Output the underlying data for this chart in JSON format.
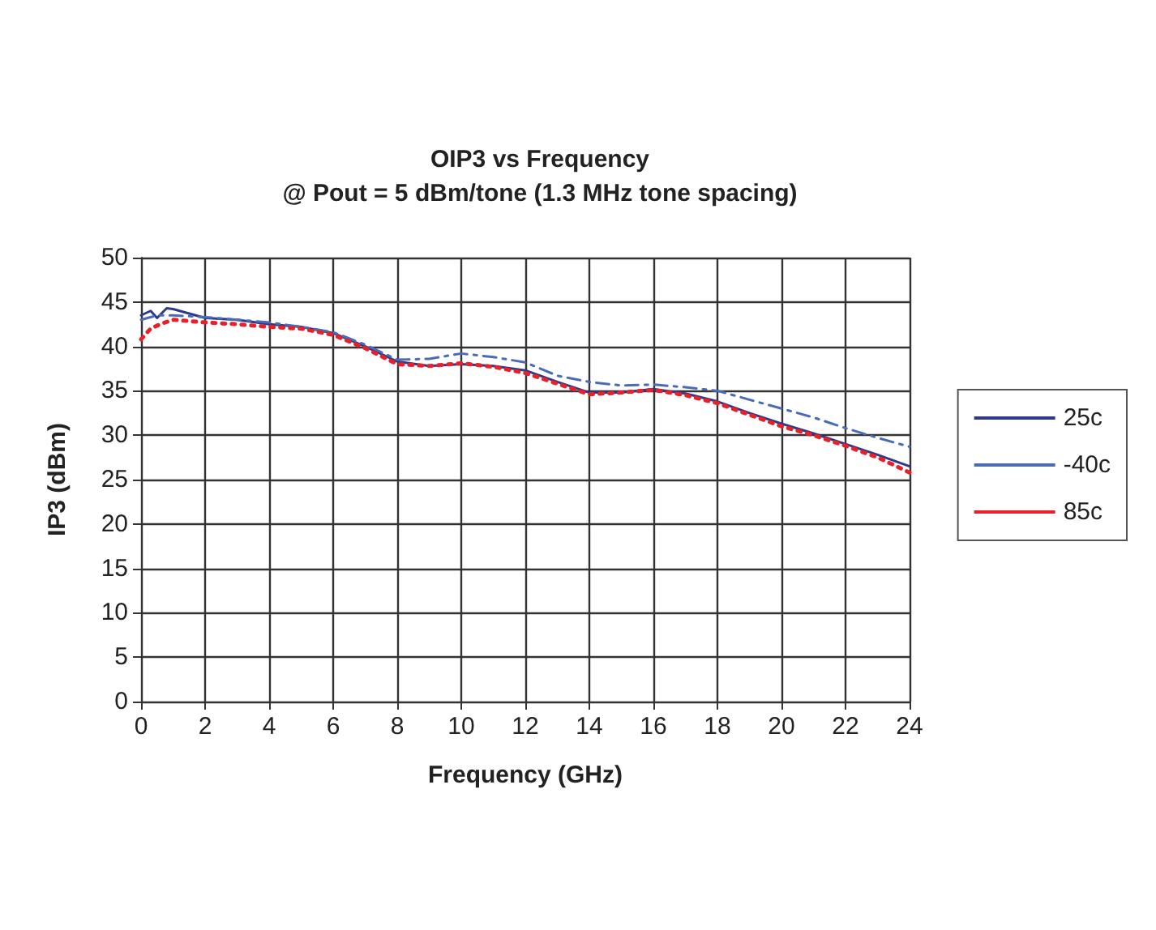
{
  "chart_data": {
    "type": "line",
    "title": "OIP3 vs Frequency",
    "subtitle": "@ Pout = 5 dBm/tone (1.3 MHz tone spacing)",
    "xlabel": "Frequency (GHz)",
    "ylabel": "IP3 (dBm)",
    "xlim": [
      0,
      24
    ],
    "xticks": [
      0,
      2,
      4,
      6,
      8,
      10,
      12,
      14,
      16,
      18,
      20,
      22,
      24
    ],
    "ylim": [
      0,
      50
    ],
    "yticks": [
      0,
      5,
      10,
      15,
      20,
      25,
      30,
      35,
      40,
      45,
      50
    ],
    "grid": true,
    "legend": "right",
    "marker": "none",
    "series": [
      {
        "name": "25c",
        "color": "#2e3a87",
        "line_style": "solid",
        "x": [
          0,
          0.3,
          0.5,
          0.8,
          1,
          1.5,
          2,
          3,
          4,
          5,
          6,
          7,
          8,
          9,
          10,
          11,
          12,
          13,
          14,
          15,
          16,
          17,
          18,
          19,
          20,
          21,
          22,
          23,
          24
        ],
        "values": [
          43.5,
          44,
          43.2,
          44.3,
          44.2,
          43.7,
          43.2,
          43,
          42.5,
          42.2,
          41.5,
          40,
          38.3,
          37.8,
          38,
          37.8,
          37.3,
          36,
          34.8,
          34.8,
          35.2,
          34.7,
          33.8,
          32.5,
          31.3,
          30.2,
          29,
          27.8,
          26.5
        ]
      },
      {
        "name": "-40c",
        "color": "#4a6bb5",
        "line_style": "dashed",
        "x": [
          0,
          0.5,
          1,
          2,
          3,
          4,
          5,
          6,
          7,
          8,
          9,
          10,
          11,
          12,
          13,
          14,
          15,
          16,
          17,
          18,
          19,
          20,
          21,
          22,
          23,
          24
        ],
        "values": [
          43,
          43.5,
          43.5,
          43.3,
          43,
          42.7,
          42.2,
          41.6,
          40.2,
          38.5,
          38.6,
          39.2,
          38.8,
          38.2,
          36.7,
          36,
          35.6,
          35.7,
          35.4,
          35,
          34,
          33,
          32,
          30.8,
          29.7,
          28.7
        ]
      },
      {
        "name": "85c",
        "color": "#e8202a",
        "line_style": "dotted",
        "x": [
          0,
          0.3,
          0.6,
          1,
          2,
          3,
          4,
          5,
          6,
          7,
          8,
          9,
          10,
          11,
          12,
          13,
          14,
          15,
          16,
          17,
          18,
          19,
          20,
          21,
          22,
          23,
          24
        ],
        "values": [
          40.8,
          42,
          42.5,
          43,
          42.7,
          42.5,
          42.2,
          42,
          41.3,
          39.8,
          38,
          37.8,
          38.1,
          37.7,
          37,
          35.8,
          34.6,
          34.8,
          35.1,
          34.5,
          33.6,
          32.3,
          31,
          30,
          28.8,
          27.5,
          25.8
        ]
      }
    ]
  }
}
